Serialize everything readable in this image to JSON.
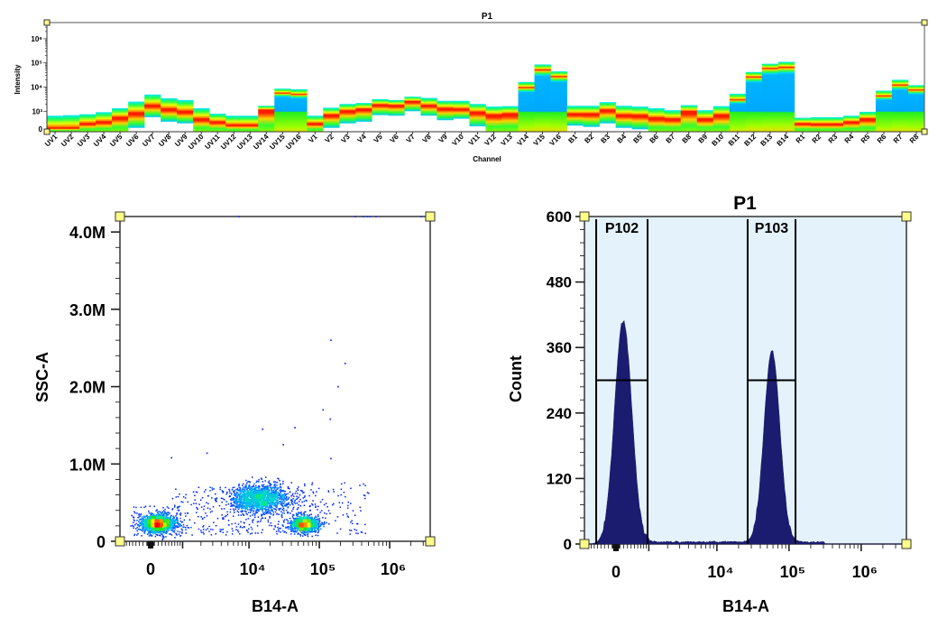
{
  "chart_data": [
    {
      "type": "heatmap",
      "title": "P1",
      "xlabel": "Channel",
      "ylabel": "Intensity",
      "y_scale": "biexponential",
      "y_ticks": [
        {
          "value": 0,
          "label": "0"
        },
        {
          "value": 1000,
          "label": "10³"
        },
        {
          "value": 10000,
          "label": "10⁴"
        },
        {
          "value": 100000,
          "label": "10⁵"
        },
        {
          "value": 1000000,
          "label": "10⁶"
        }
      ],
      "channels": [
        {
          "label": "UV1",
          "top": 760,
          "peak": 110,
          "bottom": 0
        },
        {
          "label": "UV2",
          "top": 790,
          "peak": 110,
          "bottom": 0
        },
        {
          "label": "UV3",
          "top": 840,
          "peak": 350,
          "bottom": 0
        },
        {
          "label": "UV4",
          "top": 950,
          "peak": 440,
          "bottom": 0
        },
        {
          "label": "UV5",
          "top": 1330,
          "peak": 680,
          "bottom": 0
        },
        {
          "label": "UV6",
          "top": 2500,
          "peak": 920,
          "bottom": 110
        },
        {
          "label": "UV7",
          "top": 4900,
          "peak": 1780,
          "bottom": 680
        },
        {
          "label": "UV8",
          "top": 3450,
          "peak": 1260,
          "bottom": 440
        },
        {
          "label": "UV9",
          "top": 2900,
          "peak": 1000,
          "bottom": 350
        },
        {
          "label": "UV10",
          "top": 1330,
          "peak": 600,
          "bottom": 0
        },
        {
          "label": "UV11",
          "top": 870,
          "peak": 440,
          "bottom": 0
        },
        {
          "label": "UV12",
          "top": 760,
          "peak": 270,
          "bottom": 0
        },
        {
          "label": "UV13",
          "top": 760,
          "peak": 270,
          "bottom": 0
        },
        {
          "label": "UV14",
          "top": 1680,
          "peak": 1150,
          "bottom": 0
        },
        {
          "label": "UV15",
          "top": 8600,
          "peak": 5600,
          "bottom": 0,
          "bright": true
        },
        {
          "label": "UV16",
          "top": 8100,
          "peak": 4900,
          "bottom": 0,
          "bright": true
        },
        {
          "label": "V1",
          "top": 760,
          "peak": 350,
          "bottom": 0
        },
        {
          "label": "V2",
          "top": 1400,
          "peak": 810,
          "bottom": 110
        },
        {
          "label": "V3",
          "top": 2000,
          "peak": 1060,
          "bottom": 350
        },
        {
          "label": "V4",
          "top": 2200,
          "peak": 1260,
          "bottom": 440
        },
        {
          "label": "V5",
          "top": 3160,
          "peak": 1880,
          "bottom": 790
        },
        {
          "label": "V6",
          "top": 2900,
          "peak": 1780,
          "bottom": 760
        },
        {
          "label": "V7",
          "top": 4000,
          "peak": 2600,
          "bottom": 1000
        },
        {
          "label": "V8",
          "top": 3550,
          "peak": 1780,
          "bottom": 760
        },
        {
          "label": "V9",
          "top": 2700,
          "peak": 1330,
          "bottom": 520
        },
        {
          "label": "V10",
          "top": 2700,
          "peak": 1260,
          "bottom": 600
        },
        {
          "label": "V11",
          "top": 2000,
          "peak": 960,
          "bottom": 190
        },
        {
          "label": "V12",
          "top": 1560,
          "peak": 810,
          "bottom": 0
        },
        {
          "label": "V13",
          "top": 1630,
          "peak": 870,
          "bottom": 0
        },
        {
          "label": "V14",
          "top": 16300,
          "peak": 9400,
          "bottom": 0,
          "bright": true
        },
        {
          "label": "V15",
          "top": 86000,
          "peak": 51000,
          "bottom": 0,
          "bright": true
        },
        {
          "label": "V16",
          "top": 44600,
          "peak": 27000,
          "bottom": 0,
          "bright": true
        },
        {
          "label": "B1",
          "top": 1680,
          "peak": 870,
          "bottom": 230
        },
        {
          "label": "B2",
          "top": 1680,
          "peak": 870,
          "bottom": 160
        },
        {
          "label": "B3",
          "top": 2370,
          "peak": 1150,
          "bottom": 350
        },
        {
          "label": "B4",
          "top": 1680,
          "peak": 810,
          "bottom": 110
        },
        {
          "label": "B5",
          "top": 1560,
          "peak": 790,
          "bottom": 30
        },
        {
          "label": "B6",
          "top": 1330,
          "peak": 650,
          "bottom": 0
        },
        {
          "label": "B7",
          "top": 1100,
          "peak": 600,
          "bottom": 0
        },
        {
          "label": "B8",
          "top": 1780,
          "peak": 1000,
          "bottom": 0
        },
        {
          "label": "B9",
          "top": 1100,
          "peak": 600,
          "bottom": 0
        },
        {
          "label": "B10",
          "top": 1630,
          "peak": 810,
          "bottom": 0
        },
        {
          "label": "B11",
          "top": 5300,
          "peak": 2900,
          "bottom": 0,
          "bright": true
        },
        {
          "label": "B12",
          "top": 42000,
          "peak": 26000,
          "bottom": 0,
          "bright": true
        },
        {
          "label": "B13",
          "top": 92000,
          "peak": 59000,
          "bottom": 0,
          "bright": true
        },
        {
          "label": "B14",
          "top": 110000,
          "peak": 65000,
          "bottom": 0,
          "bright": true
        },
        {
          "label": "R1",
          "top": 650,
          "peak": 350,
          "bottom": 0
        },
        {
          "label": "R2",
          "top": 680,
          "peak": 320,
          "bottom": 0
        },
        {
          "label": "R3",
          "top": 680,
          "peak": 320,
          "bottom": 0
        },
        {
          "label": "R4",
          "top": 760,
          "peak": 440,
          "bottom": 0
        },
        {
          "label": "R5",
          "top": 970,
          "peak": 600,
          "bottom": 0
        },
        {
          "label": "R6",
          "top": 7100,
          "peak": 4200,
          "bottom": 0,
          "bright": true
        },
        {
          "label": "R7",
          "top": 20000,
          "peak": 12000,
          "bottom": 0,
          "bright": true
        },
        {
          "label": "R8",
          "top": 12000,
          "peak": 7500,
          "bottom": 0,
          "bright": true
        }
      ]
    },
    {
      "type": "scatter",
      "title": "",
      "xlabel": "B14-A",
      "ylabel": "SSC-A",
      "x_scale": "biexponential",
      "xlim": [
        -950,
        3800000
      ],
      "ylim": [
        0,
        4200000
      ],
      "x_ticks": [
        {
          "value": 0,
          "label": "0"
        },
        {
          "value": 10000,
          "label": "10⁴"
        },
        {
          "value": 100000,
          "label": "10⁵"
        },
        {
          "value": 1000000,
          "label": "10⁶"
        }
      ],
      "y_ticks": [
        {
          "value": 0,
          "label": "0"
        },
        {
          "value": 1000000,
          "label": "1.0M"
        },
        {
          "value": 2000000,
          "label": "2.0M"
        },
        {
          "value": 3000000,
          "label": "3.0M"
        },
        {
          "value": 4000000,
          "label": "4.0M"
        }
      ],
      "coloring": "density",
      "clusters": [
        {
          "x_center": 190,
          "y_center": 230000,
          "x_spread_decades": 0.12,
          "y_spread": 60000,
          "count": 1500
        },
        {
          "x_center": 13800,
          "y_center": 550000,
          "x_spread_decades": 0.2,
          "y_spread": 90000,
          "count": 1500
        },
        {
          "x_center": 62000,
          "y_center": 220000,
          "x_spread_decades": 0.1,
          "y_spread": 50000,
          "count": 1000
        }
      ],
      "outliers": [
        [
          146000,
          2600000
        ],
        [
          233000,
          2300000
        ],
        [
          185000,
          2000000
        ],
        [
          113000,
          1700000
        ],
        [
          143000,
          1580000
        ],
        [
          15600,
          1450000
        ],
        [
          45000,
          1470000
        ],
        [
          30700,
          1250000
        ],
        [
          146000,
          1070000
        ],
        [
          2470,
          1140000
        ],
        [
          590,
          1080000
        ],
        [
          7200,
          4200000
        ],
        [
          325000,
          4200000
        ],
        [
          425000,
          4200000
        ],
        [
          480000,
          4200000
        ],
        [
          525000,
          4200000
        ],
        [
          640000,
          4200000
        ],
        [
          2800000,
          4200000
        ]
      ]
    },
    {
      "type": "area",
      "title": "P1",
      "xlabel": "B14-A",
      "ylabel": "Count",
      "x_scale": "biexponential",
      "xlim": [
        -950,
        4200000
      ],
      "ylim": [
        0,
        600
      ],
      "x_ticks": [
        {
          "value": 0,
          "label": "0"
        },
        {
          "value": 10000,
          "label": "10⁴"
        },
        {
          "value": 100000,
          "label": "10⁵"
        },
        {
          "value": 1000000,
          "label": "10⁶"
        }
      ],
      "y_ticks": [
        {
          "value": 0,
          "label": "0"
        },
        {
          "value": 120,
          "label": "120"
        },
        {
          "value": 240,
          "label": "240"
        },
        {
          "value": 360,
          "label": "360"
        },
        {
          "value": 480,
          "label": "480"
        },
        {
          "value": 600,
          "label": "600"
        }
      ],
      "peaks": [
        {
          "center": 186,
          "height": 410,
          "spread_decades": 0.12
        },
        {
          "center": 58000,
          "height": 350,
          "spread_decades": 0.11
        }
      ],
      "background_count": 4,
      "gates": [
        {
          "name": "P102",
          "x_min": -540,
          "x_max": 950,
          "level": 300
        },
        {
          "name": "P103",
          "x_min": 26700,
          "x_max": 123000,
          "level": 300
        }
      ],
      "colors": {
        "fill": "#1b1b70",
        "background": "#e4f2fc"
      }
    }
  ]
}
